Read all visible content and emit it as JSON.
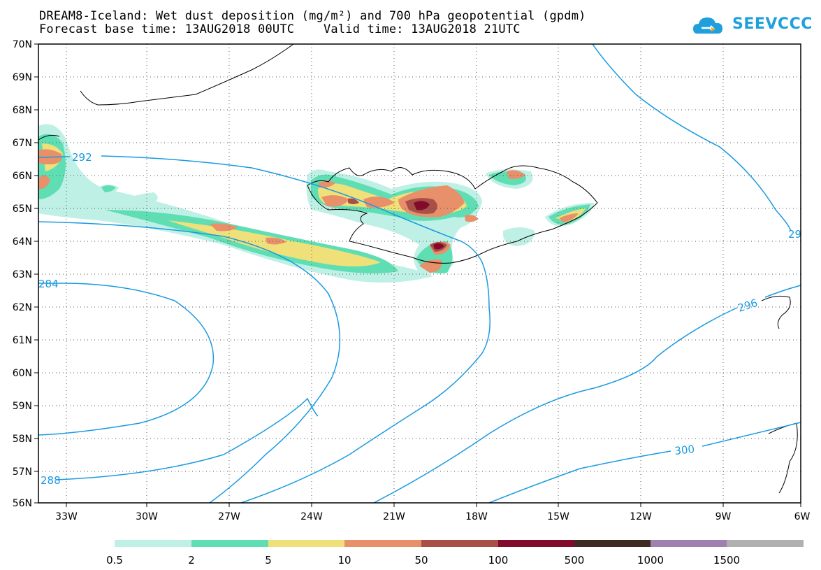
{
  "title": {
    "line1": "DREAM8-Iceland: Wet dust deposition (mg/m²) and 700 hPa geopotential (gpdm)",
    "line2": "Forecast base time: 13AUG2018 00UTC    Valid time: 13AUG2018 21UTC"
  },
  "logo": {
    "text": "SEEVCCC",
    "icon": "cloud-icon",
    "color": "#1fa0dd"
  },
  "map": {
    "lon_range": [
      -34.3,
      -6
    ],
    "lat_range": [
      56,
      70
    ],
    "lat_ticks": [
      "70N",
      "69N",
      "68N",
      "67N",
      "66N",
      "65N",
      "64N",
      "63N",
      "62N",
      "61N",
      "60N",
      "59N",
      "58N",
      "57N",
      "56N"
    ],
    "lon_ticks": [
      "33W",
      "30W",
      "27W",
      "24W",
      "21W",
      "18W",
      "15W",
      "12W",
      "9W",
      "6W"
    ],
    "gridlines": "dotted"
  },
  "contours": {
    "color": "#1a9ae0",
    "labels": [
      "292",
      "284",
      "288",
      "296",
      "300",
      "29"
    ]
  },
  "legend": {
    "colors": [
      "#bff0e6",
      "#5fdeb4",
      "#f0e07a",
      "#e8906a",
      "#a84f48",
      "#820a2a",
      "#3c2c22",
      "#a080b0",
      "#b0b0b0"
    ],
    "labels": [
      "0.5",
      "2",
      "5",
      "10",
      "50",
      "100",
      "500",
      "1000",
      "1500"
    ]
  }
}
